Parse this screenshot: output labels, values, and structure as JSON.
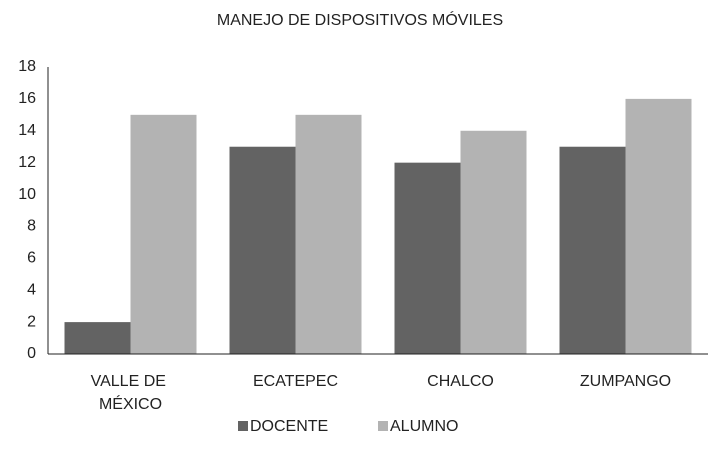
{
  "chart_data": {
    "type": "bar",
    "title": "MANEJO DE DISPOSITIVOS MÓVILES",
    "categories": [
      "VALLE DE MÉXICO",
      "ECATEPEC",
      "CHALCO",
      "ZUMPANGO"
    ],
    "series": [
      {
        "name": "DOCENTE",
        "color": "#636363",
        "values": [
          2,
          13,
          12,
          13
        ]
      },
      {
        "name": "ALUMNO",
        "color": "#b3b3b3",
        "values": [
          15,
          15,
          14,
          16
        ]
      }
    ],
    "ylim": [
      0,
      18
    ],
    "yticks": [
      0,
      2,
      4,
      6,
      8,
      10,
      12,
      14,
      16,
      18
    ],
    "grid": false,
    "legend": "bottom"
  }
}
